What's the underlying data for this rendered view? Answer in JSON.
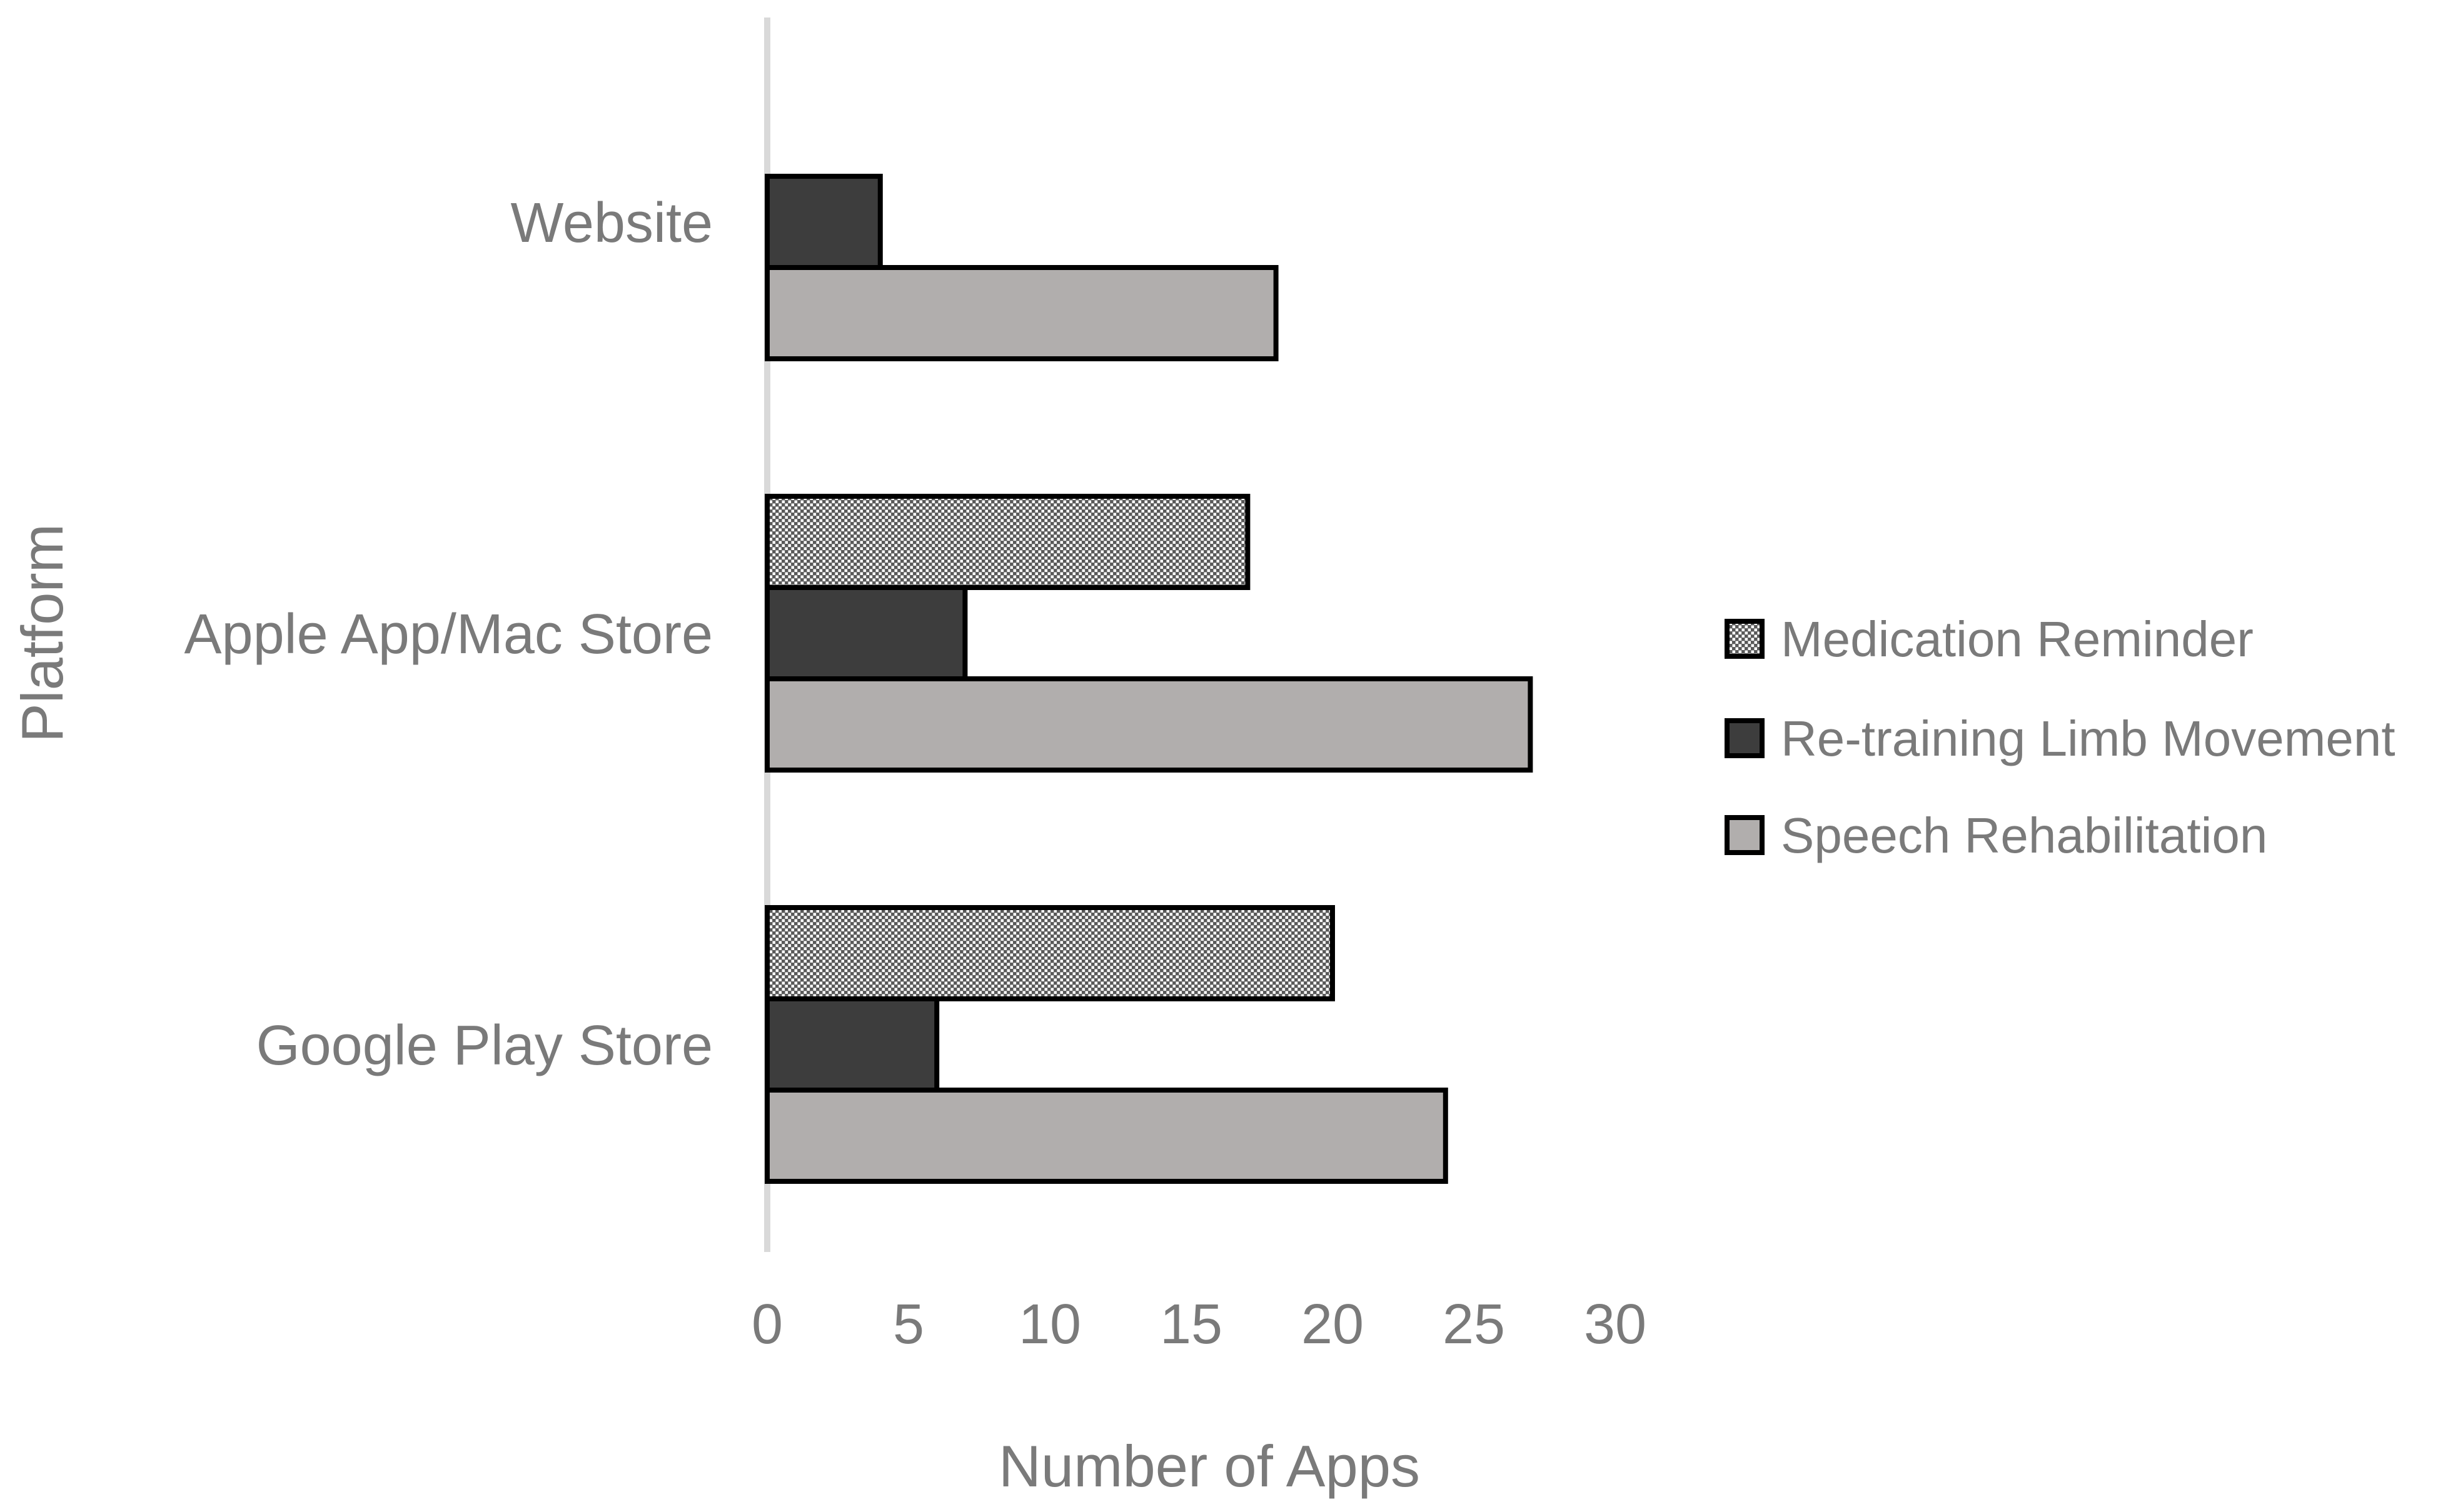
{
  "chart_data": {
    "type": "bar",
    "orientation": "horizontal",
    "title": "",
    "xlabel": "Number of Apps",
    "ylabel": "Platform",
    "categories": [
      "Website",
      "Apple App/Mac Store",
      "Google Play Store"
    ],
    "x_ticks": [
      0,
      5,
      10,
      15,
      20,
      25,
      30
    ],
    "xlim": [
      0,
      34
    ],
    "grid": false,
    "legend_position": "right",
    "series": [
      {
        "name": "Medication Reminder",
        "style": "dotted-grid-pattern",
        "fill": "#595959",
        "pattern_dot_color": "#ffffff",
        "values": [
          0,
          17,
          20
        ]
      },
      {
        "name": "Re-training Limb Movement",
        "style": "solid",
        "fill": "#3d3d3d",
        "values": [
          4,
          7,
          6
        ]
      },
      {
        "name": "Speech Rehabilitation",
        "style": "solid",
        "fill": "#b1aead",
        "values": [
          18,
          27,
          24
        ]
      }
    ],
    "bar_outline_color": "#000000",
    "axis_line_color": "#d9d9d9",
    "text_color": "#7a7a7a"
  }
}
